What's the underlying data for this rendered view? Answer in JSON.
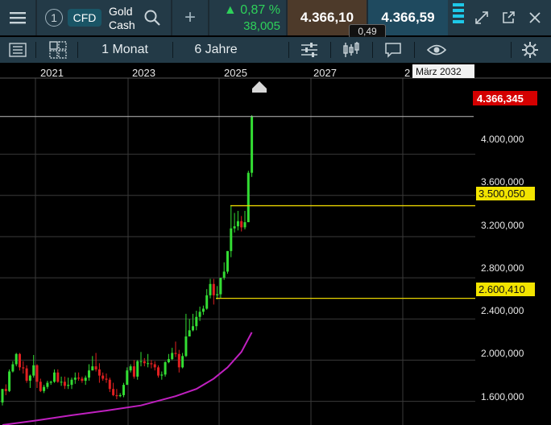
{
  "header": {
    "menu_icon": "hamburger-icon",
    "instrument_number": "1",
    "instrument_type": "CFD",
    "instrument_name_line1": "Gold",
    "instrument_name_line2": "Cash",
    "change_percent": "▲ 0,87 %",
    "change_abs": "38,005",
    "bid": "4.366,10",
    "ask": "4.366,59",
    "spread": "0,49",
    "up_color": "#2ed15a"
  },
  "toolbar": {
    "interval": "1 Monat",
    "range": "6 Jahre"
  },
  "chart_data": {
    "type": "candlestick",
    "x_ticks": [
      "2021",
      "2023",
      "2025",
      "2027",
      "2"
    ],
    "crosshair_x_label": "März 2032",
    "y_ticks": [
      "4.000,000",
      "3.600,000",
      "3.200,000",
      "2.800,000",
      "2.400,000",
      "2.000,000",
      "1.600,000"
    ],
    "y_tick_values": [
      4000,
      3600,
      3200,
      2800,
      2400,
      2000,
      1600
    ],
    "ylim": [
      1370,
      4740
    ],
    "last_price_label": "4.366,345",
    "last_price": 4366.345,
    "hlines": [
      {
        "label": "3.500,050",
        "value": 3500.05,
        "color": "#e8d400"
      },
      {
        "label": "2.600,410",
        "value": 2600.41,
        "color": "#e8d400"
      }
    ],
    "up_color": "#33dd33",
    "down_color": "#e02020",
    "ma_color": "#c020c0",
    "candles": [
      [
        1589,
        1720,
        1560,
        1720
      ],
      [
        1720,
        1765,
        1660,
        1700
      ],
      [
        1700,
        1910,
        1690,
        1890
      ],
      [
        1890,
        1990,
        1880,
        1960
      ],
      [
        1960,
        2070,
        1940,
        2060
      ],
      [
        2060,
        2070,
        1900,
        1930
      ],
      [
        1930,
        1990,
        1870,
        1920
      ],
      [
        1920,
        1950,
        1780,
        1800
      ],
      [
        1800,
        1860,
        1730,
        1850
      ],
      [
        1850,
        2050,
        1830,
        1950
      ],
      [
        1950,
        1960,
        1730,
        1790
      ],
      [
        1790,
        1820,
        1690,
        1700
      ],
      [
        1700,
        1760,
        1680,
        1740
      ],
      [
        1740,
        1800,
        1720,
        1780
      ],
      [
        1780,
        1800,
        1760,
        1790
      ],
      [
        1790,
        1910,
        1780,
        1880
      ],
      [
        1880,
        1910,
        1780,
        1790
      ],
      [
        1790,
        1840,
        1750,
        1790
      ],
      [
        1790,
        1840,
        1720,
        1750
      ],
      [
        1750,
        1830,
        1720,
        1760
      ],
      [
        1760,
        1830,
        1720,
        1810
      ],
      [
        1810,
        1880,
        1770,
        1830
      ],
      [
        1830,
        1880,
        1800,
        1820
      ],
      [
        1820,
        1840,
        1780,
        1800
      ],
      [
        1800,
        1850,
        1760,
        1830
      ],
      [
        1830,
        1960,
        1800,
        1900
      ],
      [
        1900,
        2040,
        1900,
        1940
      ],
      [
        1940,
        2070,
        1890,
        1910
      ],
      [
        1910,
        1970,
        1780,
        1850
      ],
      [
        1850,
        1880,
        1800,
        1820
      ],
      [
        1820,
        1870,
        1780,
        1810
      ],
      [
        1810,
        1830,
        1690,
        1720
      ],
      [
        1720,
        1780,
        1650,
        1660
      ],
      [
        1660,
        1720,
        1620,
        1650
      ],
      [
        1650,
        1680,
        1640,
        1660
      ],
      [
        1660,
        1780,
        1640,
        1760
      ],
      [
        1760,
        1930,
        1760,
        1900
      ],
      [
        1900,
        1960,
        1880,
        1940
      ],
      [
        1940,
        2000,
        1820,
        1840
      ],
      [
        1840,
        2000,
        1810,
        1990
      ],
      [
        1990,
        2080,
        1940,
        1990
      ],
      [
        1990,
        2020,
        1940,
        1970
      ],
      [
        1970,
        2060,
        1930,
        1970
      ],
      [
        1970,
        2000,
        1920,
        1960
      ],
      [
        1960,
        1990,
        1900,
        1930
      ],
      [
        1930,
        1950,
        1830,
        1850
      ],
      [
        1850,
        1890,
        1810,
        1860
      ],
      [
        1860,
        1990,
        1840,
        1980
      ],
      [
        1980,
        2060,
        1970,
        2010
      ],
      [
        2010,
        2120,
        2000,
        2070
      ],
      [
        2070,
        2180,
        2030,
        2060
      ],
      [
        2060,
        2100,
        1880,
        1930
      ],
      [
        1930,
        2070,
        1920,
        2040
      ],
      [
        2040,
        2450,
        2030,
        2230
      ],
      [
        2230,
        2400,
        2250,
        2290
      ],
      [
        2290,
        2450,
        2280,
        2330
      ],
      [
        2330,
        2480,
        2290,
        2420
      ],
      [
        2420,
        2520,
        2380,
        2470
      ],
      [
        2470,
        2530,
        2440,
        2500
      ],
      [
        2500,
        2690,
        2490,
        2630
      ],
      [
        2630,
        2790,
        2600,
        2740
      ],
      [
        2740,
        2790,
        2540,
        2630
      ],
      [
        2630,
        2720,
        2590,
        2640
      ],
      [
        2640,
        2800,
        2600,
        2800
      ],
      [
        2800,
        2950,
        2780,
        2860
      ],
      [
        2860,
        3060,
        2840,
        3060
      ],
      [
        3060,
        3500,
        3000,
        3280
      ],
      [
        3280,
        3430,
        3240,
        3300
      ],
      [
        3300,
        3450,
        3260,
        3350
      ],
      [
        3350,
        3400,
        3250,
        3290
      ],
      [
        3290,
        3450,
        3270,
        3340
      ],
      [
        3340,
        3840,
        3340,
        3820
      ],
      [
        3820,
        4380,
        3780,
        4366
      ]
    ],
    "moving_average": [
      [
        0,
        1370
      ],
      [
        10,
        1415
      ],
      [
        20,
        1465
      ],
      [
        30,
        1510
      ],
      [
        40,
        1560
      ],
      [
        50,
        1650
      ],
      [
        56,
        1720
      ],
      [
        61,
        1820
      ],
      [
        65,
        1930
      ],
      [
        69,
        2080
      ],
      [
        72,
        2270
      ]
    ]
  }
}
